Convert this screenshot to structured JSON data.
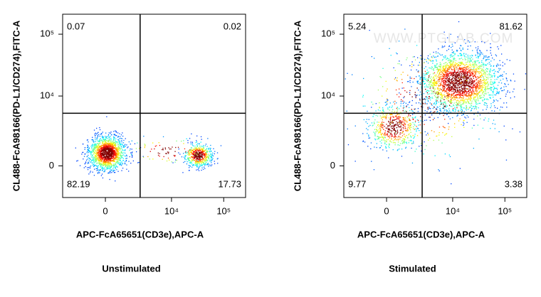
{
  "chart_data": [
    {
      "type": "quadrant",
      "title": "Unstimulated",
      "x_label": "APC-FcA65651(CD3e),APC-A",
      "y_label": "CL488-FcA98166(PD-L1/CD274),FITC-A",
      "xscale": "biexponential",
      "yscale": "biexponential",
      "xlim": [
        -3500,
        262144
      ],
      "ylim": [
        -2200,
        210000
      ],
      "xticks": [
        0,
        {
          "value": 10000,
          "label": "10⁴"
        },
        {
          "value": 100000,
          "label": "10⁵"
        }
      ],
      "yticks": [
        0,
        {
          "value": 10000,
          "label": "10⁴"
        },
        {
          "value": 100000,
          "label": "10⁵"
        }
      ],
      "gate": {
        "x": 2400,
        "y": 5200
      },
      "quadrant_values": {
        "top-left": 0.07,
        "top-right": 0.02,
        "bottom-left": 82.19,
        "bottom-right": 17.73
      }
    },
    {
      "type": "quadrant",
      "title": "Stimulated",
      "watermark": "WWW.PTGLAB.COM",
      "x_label": "APC-FcA65651(CD3e),APC-A",
      "y_label": "CL488-FcA98166(PD-L1/CD274),FITC-A",
      "xscale": "biexponential",
      "yscale": "biexponential",
      "xlim": [
        -3500,
        262144
      ],
      "ylim": [
        -2200,
        210000
      ],
      "xticks": [
        0,
        {
          "value": 10000,
          "label": "10⁴"
        },
        {
          "value": 100000,
          "label": "10⁵"
        }
      ],
      "yticks": [
        0,
        {
          "value": 10000,
          "label": "10⁴"
        },
        {
          "value": 100000,
          "label": "10⁵"
        }
      ],
      "gate": {
        "x": 2500,
        "y": 5200
      },
      "quadrant_values": {
        "top-left": 5.24,
        "top-right": 81.62,
        "bottom-left": 9.77,
        "bottom-right": 3.38
      }
    }
  ]
}
